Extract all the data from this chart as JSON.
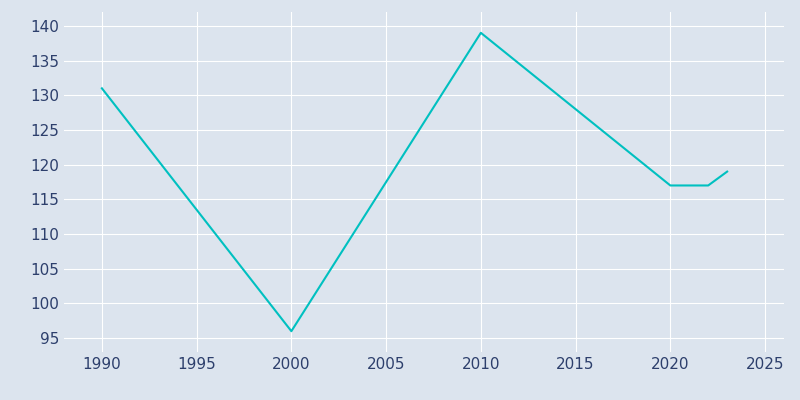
{
  "years": [
    1990,
    2000,
    2010,
    2020,
    2021,
    2022,
    2023
  ],
  "population": [
    131,
    96,
    139,
    117,
    117,
    117,
    119
  ],
  "line_color": "#00C0C0",
  "bg_color": "#DCE4EE",
  "plot_bg_color": "#DCE4EE",
  "xlim": [
    1988,
    2026
  ],
  "ylim": [
    93,
    142
  ],
  "yticks": [
    95,
    100,
    105,
    110,
    115,
    120,
    125,
    130,
    135,
    140
  ],
  "xticks": [
    1990,
    1995,
    2000,
    2005,
    2010,
    2015,
    2020,
    2025
  ],
  "linewidth": 1.5,
  "figsize": [
    8.0,
    4.0
  ],
  "dpi": 100,
  "tick_color": "#2D3F6C",
  "grid_color": "#FFFFFF",
  "label_fontsize": 11
}
